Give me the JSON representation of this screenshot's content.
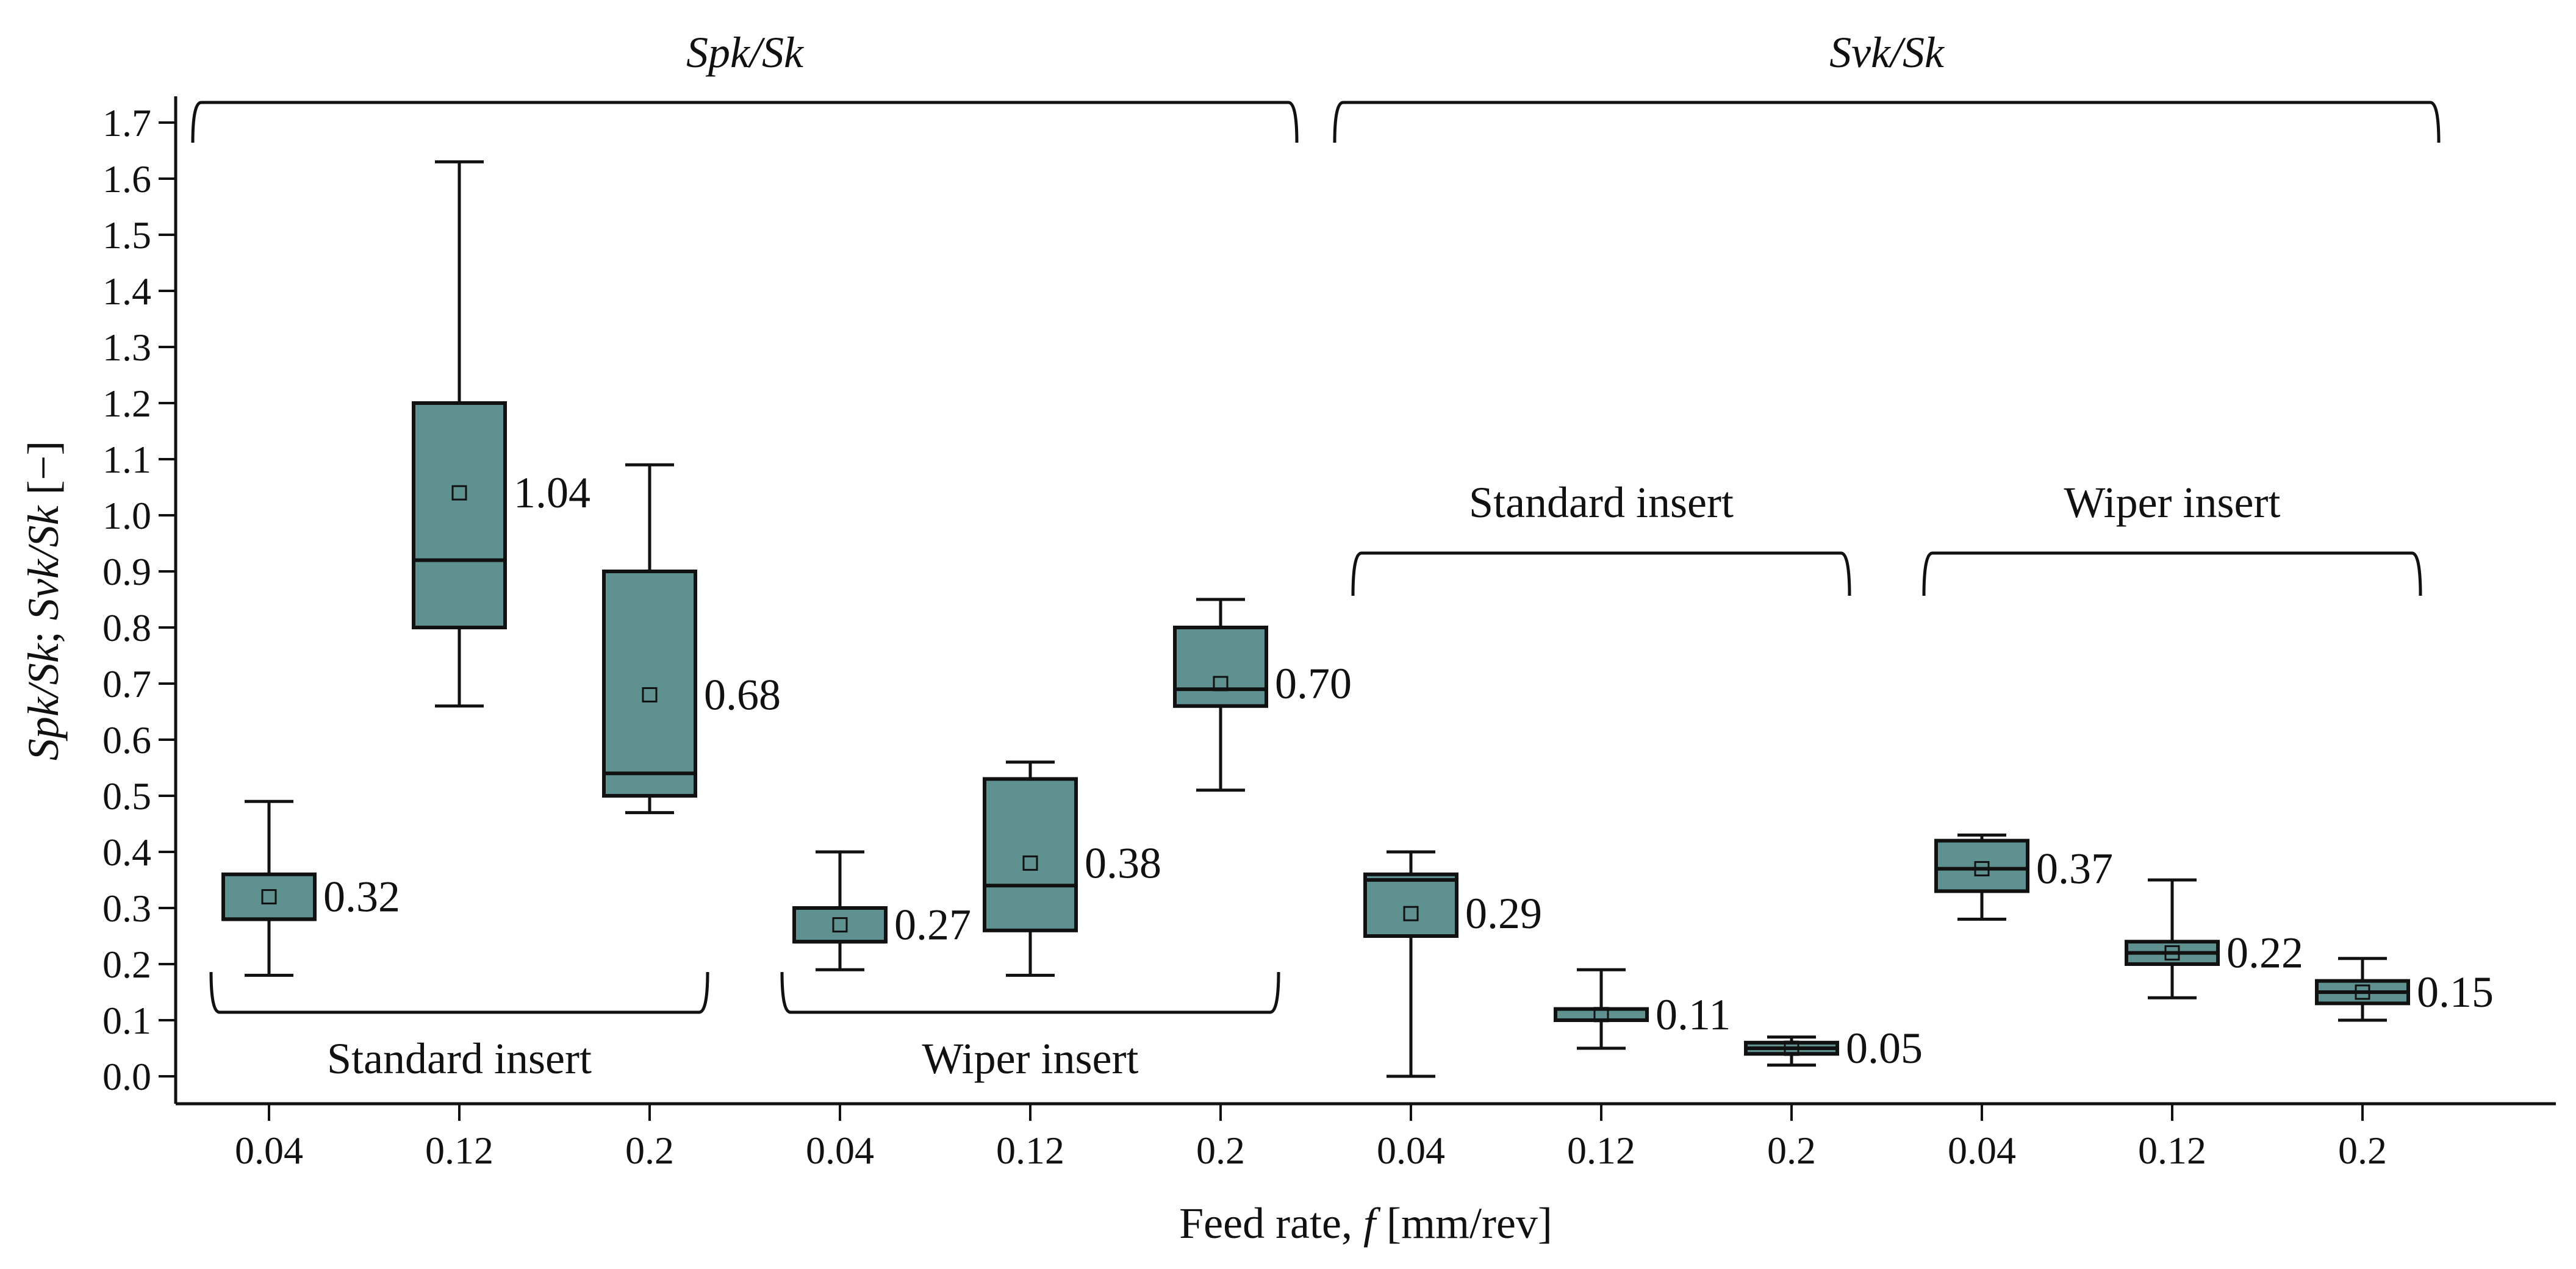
{
  "chart_data": {
    "type": "box",
    "title": "",
    "xlabel": "Feed rate, f [mm/rev]",
    "xlabel_parts": {
      "prefix": "Feed rate, ",
      "var": "f",
      "suffix": " [mm/rev]"
    },
    "ylabel": "Spk/Sk; Svk/Sk [−]",
    "ylabel_parts": {
      "a": "Spk/Sk",
      "sep": "; ",
      "b": "Svk/Sk",
      "unit": " [−]"
    },
    "ylim": [
      0.0,
      1.7
    ],
    "yticks": [
      "0.0",
      "0.1",
      "0.2",
      "0.3",
      "0.4",
      "0.5",
      "0.6",
      "0.7",
      "0.8",
      "0.9",
      "1.0",
      "1.1",
      "1.2",
      "1.3",
      "1.4",
      "1.5",
      "1.6",
      "1.7"
    ],
    "categories": [
      "0.04",
      "0.12",
      "0.2",
      "0.04",
      "0.12",
      "0.2",
      "0.04",
      "0.12",
      "0.2",
      "0.04",
      "0.12",
      "0.2"
    ],
    "box_color": "#5f9191",
    "top_groups": [
      {
        "label": "Spk/Sk",
        "from": 0,
        "to": 5
      },
      {
        "label": "Svk/Sk",
        "from": 6,
        "to": 11
      }
    ],
    "sub_groups": [
      {
        "label": "Standard insert",
        "from": 0,
        "to": 2,
        "position": "below"
      },
      {
        "label": "Wiper insert",
        "from": 3,
        "to": 5,
        "position": "below"
      },
      {
        "label": "Standard insert",
        "from": 6,
        "to": 8,
        "position": "above"
      },
      {
        "label": "Wiper insert",
        "from": 9,
        "to": 11,
        "position": "above"
      }
    ],
    "boxes": [
      {
        "min": 0.18,
        "q1": 0.28,
        "median": 0.28,
        "q3": 0.36,
        "max": 0.49,
        "mean": 0.32,
        "label": "0.32"
      },
      {
        "min": 0.66,
        "q1": 0.8,
        "median": 0.92,
        "q3": 1.2,
        "max": 1.63,
        "mean": 1.04,
        "label": "1.04"
      },
      {
        "min": 0.47,
        "q1": 0.5,
        "median": 0.54,
        "q3": 0.9,
        "max": 1.09,
        "mean": 0.68,
        "label": "0.68"
      },
      {
        "min": 0.19,
        "q1": 0.24,
        "median": 0.24,
        "q3": 0.3,
        "max": 0.4,
        "mean": 0.27,
        "label": "0.27"
      },
      {
        "min": 0.18,
        "q1": 0.26,
        "median": 0.34,
        "q3": 0.53,
        "max": 0.56,
        "mean": 0.38,
        "label": "0.38"
      },
      {
        "min": 0.51,
        "q1": 0.66,
        "median": 0.69,
        "q3": 0.8,
        "max": 0.85,
        "mean": 0.7,
        "label": "0.70"
      },
      {
        "min": 0.0,
        "q1": 0.25,
        "median": 0.35,
        "q3": 0.36,
        "max": 0.4,
        "mean": 0.29,
        "label": "0.29"
      },
      {
        "min": 0.05,
        "q1": 0.1,
        "median": 0.1,
        "q3": 0.12,
        "max": 0.19,
        "mean": 0.11,
        "label": "0.11"
      },
      {
        "min": 0.02,
        "q1": 0.04,
        "median": 0.05,
        "q3": 0.06,
        "max": 0.07,
        "mean": 0.05,
        "label": "0.05"
      },
      {
        "min": 0.28,
        "q1": 0.33,
        "median": 0.37,
        "q3": 0.42,
        "max": 0.43,
        "mean": 0.37,
        "label": "0.37"
      },
      {
        "min": 0.14,
        "q1": 0.2,
        "median": 0.22,
        "q3": 0.24,
        "max": 0.35,
        "mean": 0.22,
        "label": "0.22"
      },
      {
        "min": 0.1,
        "q1": 0.13,
        "median": 0.15,
        "q3": 0.17,
        "max": 0.21,
        "mean": 0.15,
        "label": "0.15"
      }
    ]
  }
}
